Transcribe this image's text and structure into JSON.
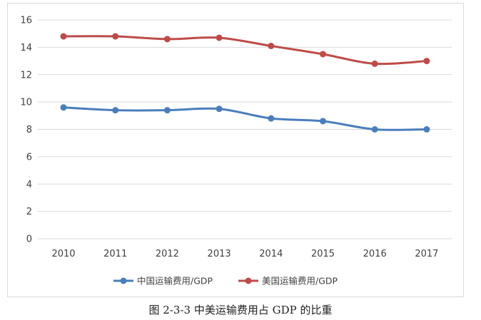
{
  "caption": "图 2-3-3 中美运输费用占 GDP 的比重",
  "chart_data": {
    "type": "line",
    "x": [
      "2010",
      "2011",
      "2012",
      "2013",
      "2014",
      "2015",
      "2016",
      "2017"
    ],
    "series": [
      {
        "name": "中国运输费用/GDP",
        "color": "#4a7ebb",
        "values": [
          9.6,
          9.4,
          9.4,
          9.5,
          8.8,
          8.6,
          8.0,
          8.0
        ]
      },
      {
        "name": "美国运输费用/GDP",
        "color": "#be4b48",
        "values": [
          14.8,
          14.8,
          14.6,
          14.7,
          14.1,
          13.5,
          12.8,
          13.0
        ]
      }
    ],
    "ylim": [
      0,
      16
    ],
    "yticks": [
      0,
      2,
      4,
      6,
      8,
      10,
      12,
      14,
      16
    ],
    "grid": true,
    "legend_position": "bottom",
    "smooth": true
  }
}
